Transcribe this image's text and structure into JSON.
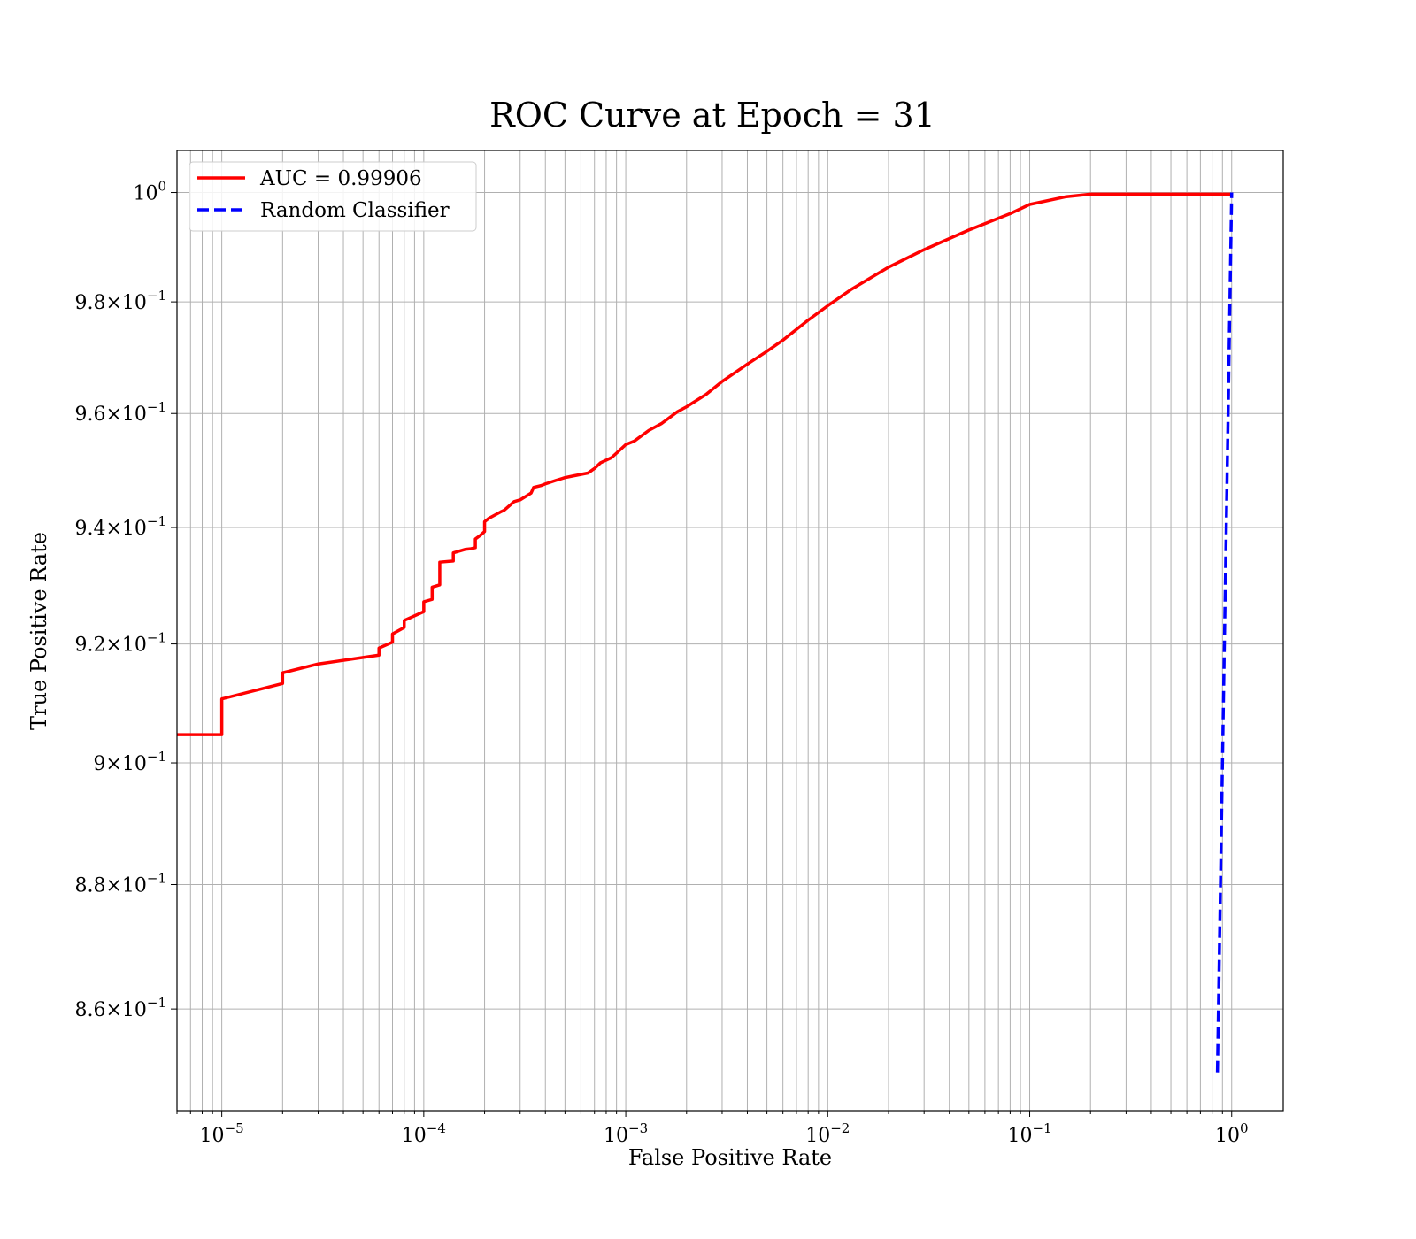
{
  "chart_data": {
    "type": "line",
    "title": "ROC Curve at Epoch = 31",
    "xlabel": "False Positive Rate",
    "ylabel": "True Positive Rate",
    "xscale": "log",
    "yscale": "log",
    "xlim": [
      6e-06,
      1.8
    ],
    "ylim": [
      0.844,
      1.0078
    ],
    "grid": "on (major and minor)",
    "legend_position": "top-left",
    "x_ticks": [
      {
        "value": 1e-05,
        "base": "10",
        "exp": "−5"
      },
      {
        "value": 0.0001,
        "base": "10",
        "exp": "−4"
      },
      {
        "value": 0.001,
        "base": "10",
        "exp": "−3"
      },
      {
        "value": 0.01,
        "base": "10",
        "exp": "−2"
      },
      {
        "value": 0.1,
        "base": "10",
        "exp": "−1"
      },
      {
        "value": 1,
        "base": "10",
        "exp": "0"
      }
    ],
    "y_ticks": [
      {
        "value": 1.0,
        "mant": "",
        "base": "10",
        "exp": "0"
      },
      {
        "value": 0.98,
        "mant": "9.8",
        "base": "10",
        "exp": "−1"
      },
      {
        "value": 0.96,
        "mant": "9.6",
        "base": "10",
        "exp": "−1"
      },
      {
        "value": 0.94,
        "mant": "9.4",
        "base": "10",
        "exp": "−1"
      },
      {
        "value": 0.92,
        "mant": "9.2",
        "base": "10",
        "exp": "−1"
      },
      {
        "value": 0.9,
        "mant": "9",
        "base": "10",
        "exp": "−1"
      },
      {
        "value": 0.88,
        "mant": "8.8",
        "base": "10",
        "exp": "−1"
      },
      {
        "value": 0.86,
        "mant": "8.6",
        "base": "10",
        "exp": "−1"
      }
    ],
    "series": [
      {
        "name": "AUC = 0.99906",
        "color": "#ff0000",
        "style": "solid",
        "x": [
          6e-06,
          1e-05,
          1e-05,
          2e-05,
          2e-05,
          3e-05,
          6e-05,
          6e-05,
          7e-05,
          7e-05,
          8e-05,
          8e-05,
          0.0001,
          0.0001,
          0.00011,
          0.00011,
          0.00012,
          0.00012,
          0.00014,
          0.00014,
          0.00016,
          0.00017,
          0.00018,
          0.00018,
          0.00019,
          0.0002,
          0.0002,
          0.00021,
          0.00024,
          0.00025,
          0.00028,
          0.0003,
          0.00034,
          0.00035,
          0.00038,
          0.0004,
          0.00045,
          0.0005,
          0.00055,
          0.00065,
          0.0007,
          0.00075,
          0.00085,
          0.0009,
          0.001,
          0.0011,
          0.0013,
          0.0015,
          0.0018,
          0.002,
          0.0025,
          0.003,
          0.004,
          0.005,
          0.006,
          0.008,
          0.01,
          0.013,
          0.02,
          0.03,
          0.05,
          0.08,
          0.1,
          0.15,
          0.2,
          0.5,
          1.0
        ],
        "y": [
          0.9047,
          0.9047,
          0.9107,
          0.9133,
          0.9151,
          0.9166,
          0.9181,
          0.9193,
          0.9203,
          0.9217,
          0.9228,
          0.924,
          0.9255,
          0.9272,
          0.9276,
          0.9297,
          0.9301,
          0.934,
          0.9342,
          0.9356,
          0.9362,
          0.9363,
          0.9365,
          0.938,
          0.9386,
          0.9393,
          0.941,
          0.9416,
          0.9427,
          0.943,
          0.9445,
          0.9448,
          0.946,
          0.947,
          0.9473,
          0.9476,
          0.9482,
          0.9487,
          0.949,
          0.9495,
          0.9503,
          0.9513,
          0.9522,
          0.953,
          0.9545,
          0.9551,
          0.957,
          0.9582,
          0.9603,
          0.9612,
          0.9634,
          0.9657,
          0.9688,
          0.9711,
          0.9731,
          0.9767,
          0.9793,
          0.9822,
          0.9863,
          0.9895,
          0.9931,
          0.9961,
          0.9978,
          0.9992,
          0.9997,
          0.9997,
          0.9997
        ]
      },
      {
        "name": "Random Classifier",
        "color": "#0000ff",
        "style": "dashed",
        "x": [
          0.85,
          0.9,
          0.95,
          1.0
        ],
        "y": [
          0.85,
          0.9,
          0.95,
          1.0
        ]
      }
    ]
  }
}
